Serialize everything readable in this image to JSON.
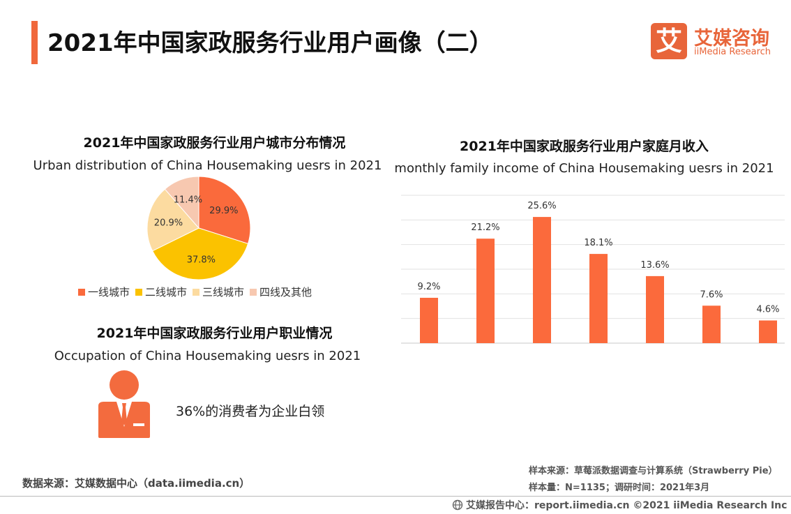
{
  "header": {
    "title": "2021年中国家政服务行业用户画像（二）",
    "logo_mark": "艾",
    "logo_cn": "艾媒咨询",
    "logo_en": "iiMedia Research"
  },
  "colors": {
    "accent": "#f0683c",
    "orange": "#fb6a3c",
    "tier1": "#fa6a3c",
    "tier2": "#fbc200",
    "tier3": "#fcdba0",
    "tier4": "#f7c8b0"
  },
  "occupation": {
    "title_cn": "2021年中国家政服务行业用户职业情况",
    "title_en": "Occupation of  China Housemaking uesrs  in 2021",
    "text": "36%的消费者为企业白领"
  },
  "sources": {
    "left": "数据来源：艾媒数据中心（data.iimedia.cn）",
    "sample_source": "样本来源：草莓派数据调查与计算系统（Strawberry Pie）",
    "sample_size": "样本量：N=1135；调研时间：2021年3月",
    "footer": "艾媒报告中心：report.iimedia.cn   ©2021  iiMedia Research  Inc"
  },
  "chart_data": [
    {
      "type": "pie",
      "title": "2021年中国家政服务行业用户城市分布情况",
      "subtitle": "Urban distribution of  China Housemaking uesrs  in 2021",
      "categories": [
        "一线城市",
        "二线城市",
        "三线城市",
        "四线及其他"
      ],
      "values": [
        29.9,
        37.8,
        20.9,
        11.4
      ],
      "labels": [
        "29.9%",
        "37.8%",
        "20.9%",
        "11.4%"
      ],
      "legend": "bottom"
    },
    {
      "type": "bar",
      "title": "2021年中国家政服务行业用户家庭月收入",
      "subtitle": "monthly family income of  China Housemaking uesrs  in 2021",
      "values": [
        9.2,
        21.2,
        25.6,
        18.1,
        13.6,
        7.6,
        4.6
      ],
      "labels": [
        "9.2%",
        "21.2%",
        "25.6%",
        "18.1%",
        "13.6%",
        "7.6%",
        "4.6%"
      ],
      "ylim": [
        0,
        30
      ],
      "grid": true
    }
  ]
}
